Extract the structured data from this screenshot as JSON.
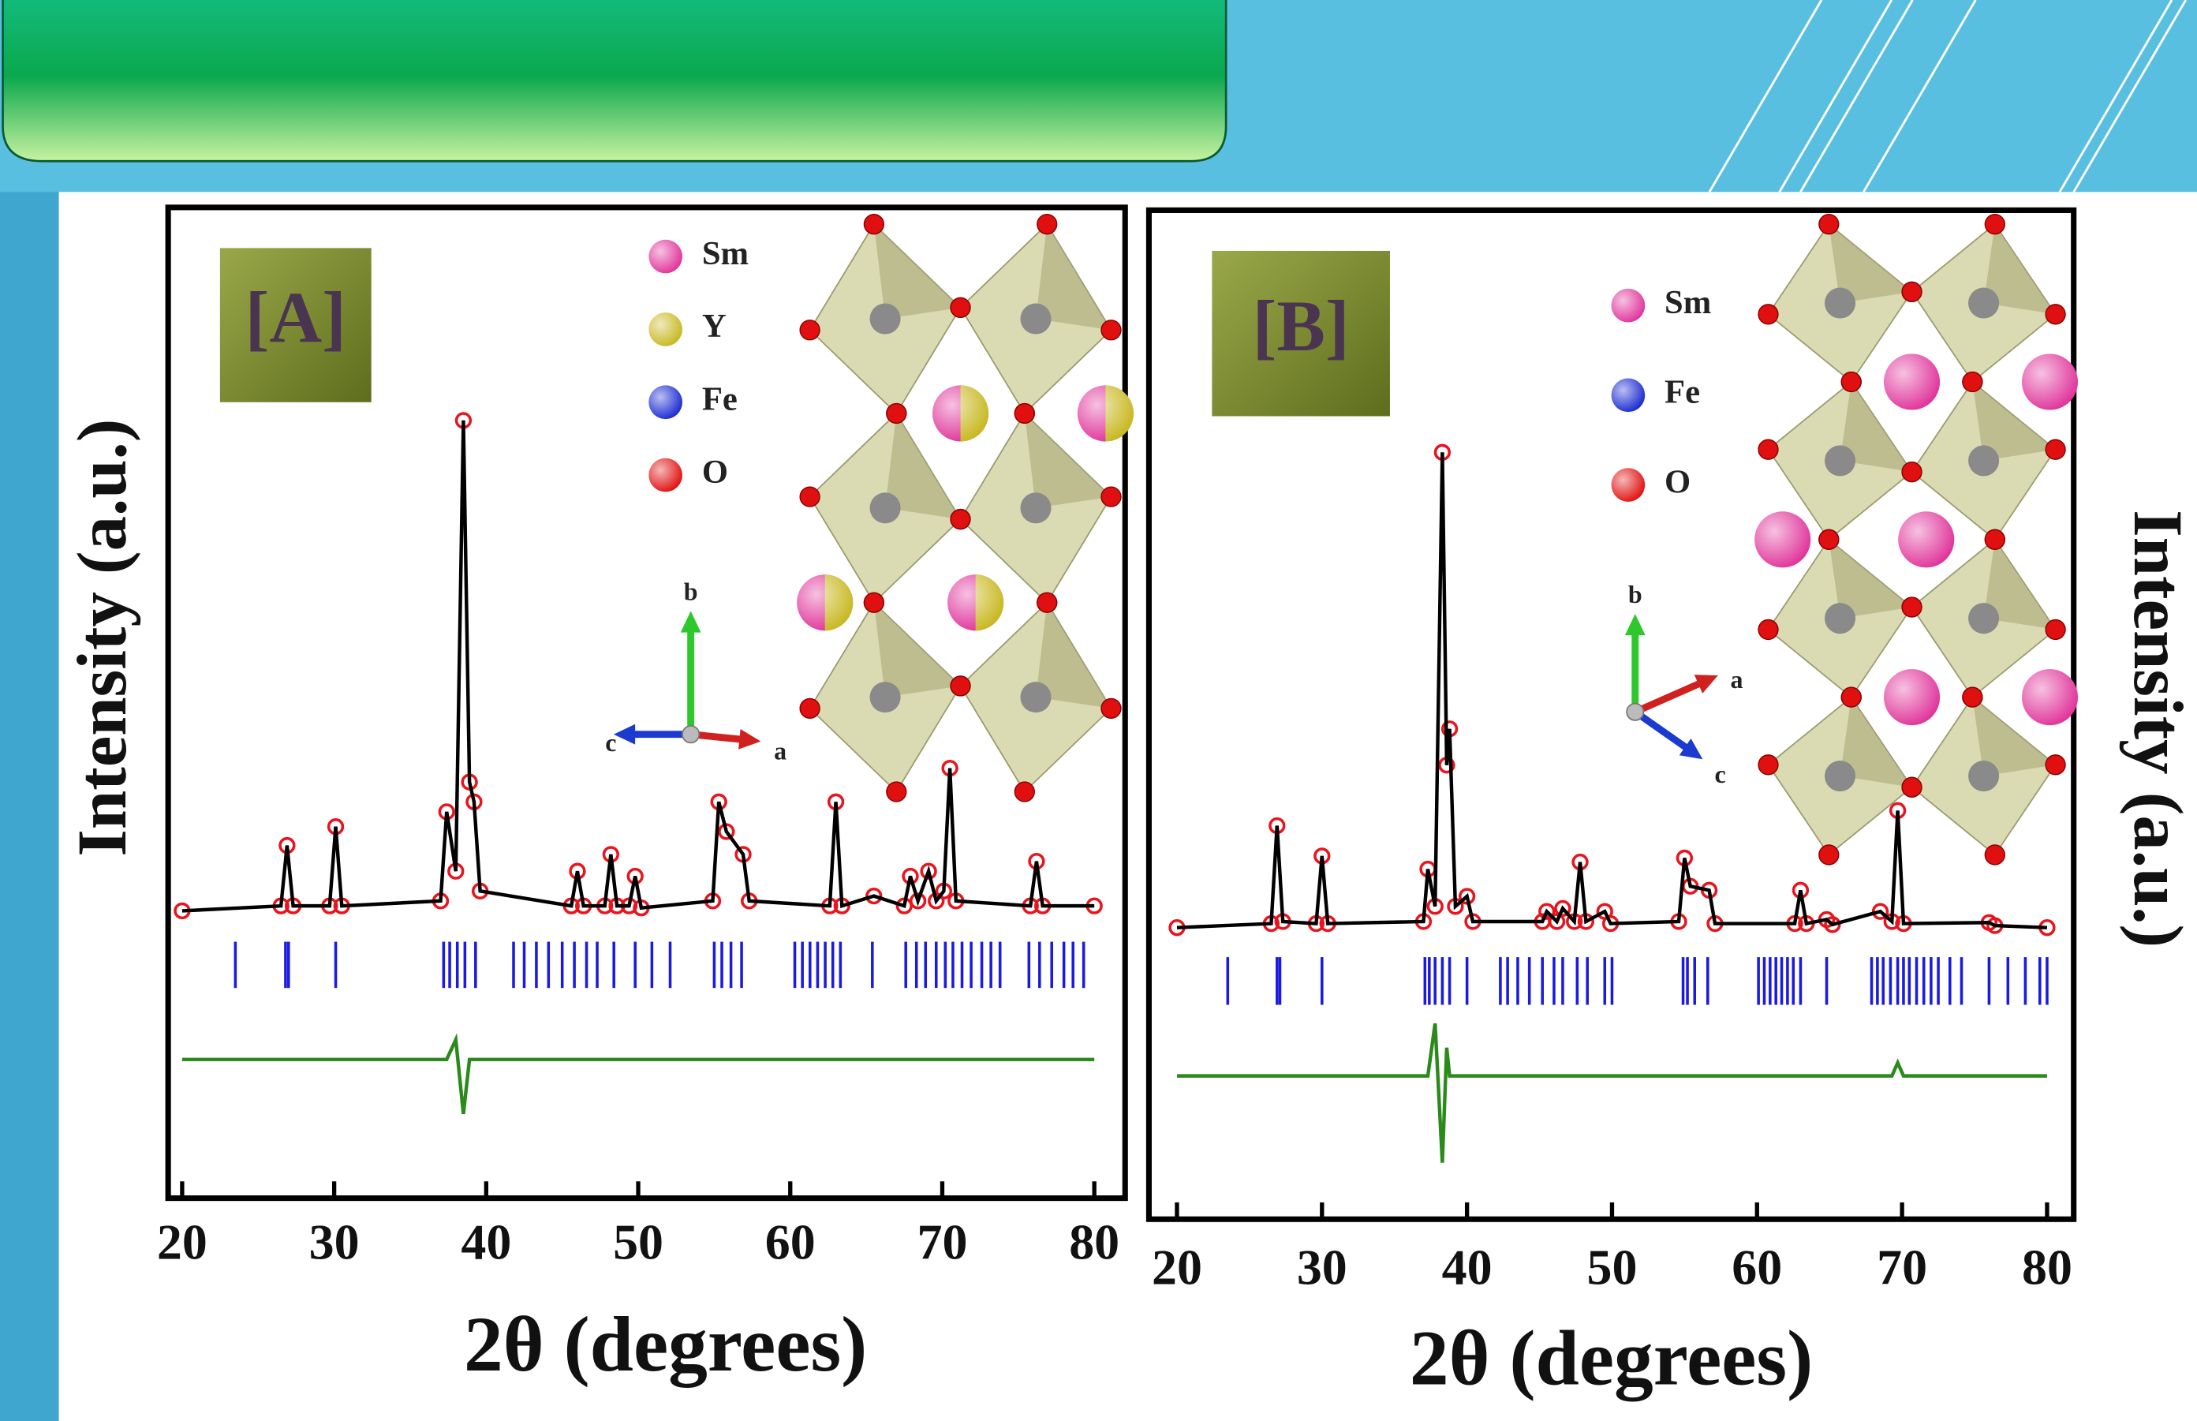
{
  "chart_data": [
    {
      "type": "rietveld",
      "panel_label": "[A]",
      "x_label": "2θ (degrees)",
      "y_label": "Intensity (a.u.)",
      "xlim": [
        20,
        80
      ],
      "xticks": [
        20,
        30,
        40,
        50,
        60,
        70,
        80
      ],
      "ylim": [
        0,
        100
      ],
      "x": [
        20,
        26.5,
        26.9,
        27.3,
        29.7,
        30.1,
        30.5,
        37.0,
        37.4,
        38.0,
        38.5,
        38.9,
        39.2,
        39.6,
        45.6,
        46.0,
        46.4,
        47.8,
        48.2,
        48.6,
        49.4,
        49.8,
        50.2,
        54.9,
        55.3,
        55.8,
        56.9,
        57.3,
        62.6,
        63.0,
        63.4,
        65.5,
        67.5,
        67.9,
        68.4,
        69.1,
        69.6,
        70.1,
        70.5,
        70.9,
        75.8,
        76.2,
        76.6,
        80
      ],
      "series": [
        {
          "style": "markers",
          "color": "#e8141e",
          "values": [
            29,
            29.5,
            35.6,
            29.5,
            29.5,
            37.5,
            29.5,
            30,
            39,
            33,
            78.5,
            42,
            40,
            31,
            29.5,
            33,
            29.5,
            29.5,
            34.7,
            29.5,
            29.5,
            32.5,
            29.3,
            30,
            40,
            37,
            34.7,
            30,
            29.5,
            40,
            29.5,
            30.5,
            29.5,
            32.5,
            30,
            33,
            30,
            31,
            43.4,
            30,
            29.5,
            34,
            29.5,
            29.5
          ]
        },
        {
          "style": "line",
          "color": "#000000",
          "values": [
            29,
            29.5,
            35.6,
            29.5,
            29.5,
            37.5,
            29.5,
            30,
            39,
            33,
            78.5,
            42,
            40,
            31,
            29.5,
            33,
            29.5,
            29.5,
            34.7,
            29.5,
            29.5,
            32.5,
            29.3,
            30,
            40,
            37,
            34.7,
            30,
            29.5,
            40,
            29.5,
            30.5,
            29.5,
            32.5,
            30,
            33,
            30,
            31,
            43.4,
            30,
            29.5,
            34,
            29.5,
            29.5
          ]
        },
        {
          "style": "line",
          "color": "#2a8a1a",
          "values": [
            14,
            14,
            14,
            14,
            14,
            14,
            14,
            14,
            14,
            16,
            8.5,
            14,
            14,
            14,
            14,
            14,
            14,
            14,
            14,
            14,
            14,
            14,
            14,
            14,
            14,
            14,
            14,
            14,
            14,
            14,
            14,
            14,
            14,
            14,
            14,
            14,
            14,
            14,
            14,
            14,
            14,
            14,
            14,
            14
          ]
        }
      ],
      "bragg_color": "#1a1ae0",
      "bragg_positions": [
        23.5,
        26.8,
        27.0,
        30.1,
        37.2,
        37.6,
        38.1,
        38.6,
        39.3,
        41.8,
        42.5,
        43.3,
        44.1,
        45.0,
        45.8,
        46.6,
        47.3,
        48.4,
        49.8,
        50.9,
        52.1,
        55.0,
        55.5,
        56.1,
        56.8,
        60.3,
        60.8,
        61.3,
        61.8,
        62.3,
        62.8,
        63.3,
        65.4,
        67.6,
        68.3,
        68.9,
        69.6,
        70.2,
        70.7,
        71.3,
        71.9,
        72.6,
        73.2,
        73.8,
        75.7,
        76.4,
        77.2,
        78.0,
        78.6,
        79.3
      ],
      "atoms": [
        {
          "name": "Sm",
          "color": "#e0339a"
        },
        {
          "name": "Y",
          "color": "#c8b820"
        },
        {
          "name": "Fe",
          "color": "#1a2ad0"
        },
        {
          "name": "O",
          "color": "#e01010"
        }
      ],
      "lattice_axes": [
        "b",
        "c",
        "a"
      ]
    },
    {
      "type": "rietveld",
      "panel_label": "[B]",
      "x_label": "2θ (degrees)",
      "y_label": "Intensity (a.u.)",
      "xlim": [
        20,
        80
      ],
      "xticks": [
        20,
        30,
        40,
        50,
        60,
        70,
        80
      ],
      "ylim": [
        0,
        100
      ],
      "x": [
        20,
        26.5,
        26.9,
        27.3,
        29.6,
        30.0,
        30.4,
        37.0,
        37.3,
        37.8,
        38.3,
        38.6,
        38.8,
        39.2,
        40.0,
        40.4,
        45.2,
        45.5,
        46.2,
        46.6,
        47.4,
        47.8,
        48.2,
        49.5,
        49.9,
        54.6,
        55.0,
        55.4,
        56.7,
        57.1,
        62.6,
        63.0,
        63.4,
        64.8,
        65.2,
        68.5,
        69.3,
        69.7,
        70.1,
        76.0,
        76.4,
        80
      ],
      "series": [
        {
          "style": "markers",
          "color": "#e8141e",
          "values": [
            28.9,
            29.3,
            39,
            29.5,
            29.3,
            36,
            29.3,
            29.5,
            34.7,
            31,
            76,
            45,
            48.6,
            31,
            32,
            29.5,
            29.5,
            30.5,
            29.5,
            30.8,
            29.5,
            35.4,
            29.5,
            30.5,
            29.3,
            29.5,
            35.8,
            33,
            32.6,
            29.3,
            29.3,
            32.6,
            29.3,
            29.7,
            29.2,
            30.5,
            29.5,
            40.5,
            29.3,
            29.4,
            29.1,
            28.9
          ]
        },
        {
          "style": "line",
          "color": "#000000",
          "values": [
            28.9,
            29.3,
            39,
            29.5,
            29.3,
            36,
            29.3,
            29.5,
            34.7,
            31,
            76,
            45,
            48.6,
            31,
            32,
            29.5,
            29.5,
            30.5,
            29.5,
            30.8,
            29.5,
            35.4,
            29.5,
            30.5,
            29.3,
            29.5,
            35.8,
            33,
            32.6,
            29.3,
            29.3,
            32.6,
            29.3,
            29.7,
            29.2,
            30.5,
            29.5,
            40.5,
            29.3,
            29.4,
            29.1,
            28.9
          ]
        },
        {
          "style": "line",
          "color": "#2a8a1a",
          "values": [
            14.2,
            14.2,
            14.2,
            14.2,
            14.2,
            14.2,
            14.2,
            14.2,
            14.2,
            19.4,
            5.6,
            17,
            14.2,
            14.2,
            14.2,
            14.2,
            14.2,
            14.2,
            14.2,
            14.2,
            14.2,
            14.2,
            14.2,
            14.2,
            14.2,
            14.2,
            14.2,
            14.2,
            14.2,
            14.2,
            14.2,
            14.2,
            14.2,
            14.2,
            14.2,
            14.2,
            14.2,
            15.5,
            14.2,
            14.2,
            14.2,
            14.2
          ]
        }
      ],
      "bragg_color": "#1a1ae0",
      "bragg_positions": [
        23.5,
        26.9,
        27.1,
        30.0,
        37.1,
        37.4,
        37.8,
        38.3,
        38.8,
        40.0,
        42.3,
        42.8,
        43.5,
        44.3,
        45.2,
        46.0,
        46.6,
        47.6,
        48.3,
        49.5,
        50.0,
        54.9,
        55.2,
        55.7,
        56.6,
        60.1,
        60.5,
        60.9,
        61.3,
        61.7,
        62.1,
        62.5,
        63.0,
        64.8,
        67.9,
        68.3,
        68.7,
        69.2,
        69.7,
        70.1,
        70.5,
        71.0,
        71.5,
        72.0,
        72.5,
        73.3,
        74.1,
        76.0,
        77.3,
        78.5,
        79.5,
        80.0
      ],
      "atoms": [
        {
          "name": "Sm",
          "color": "#e0339a"
        },
        {
          "name": "Fe",
          "color": "#1a2ad0"
        },
        {
          "name": "O",
          "color": "#e01010"
        }
      ],
      "lattice_axes": [
        "b",
        "a",
        "c"
      ]
    }
  ]
}
